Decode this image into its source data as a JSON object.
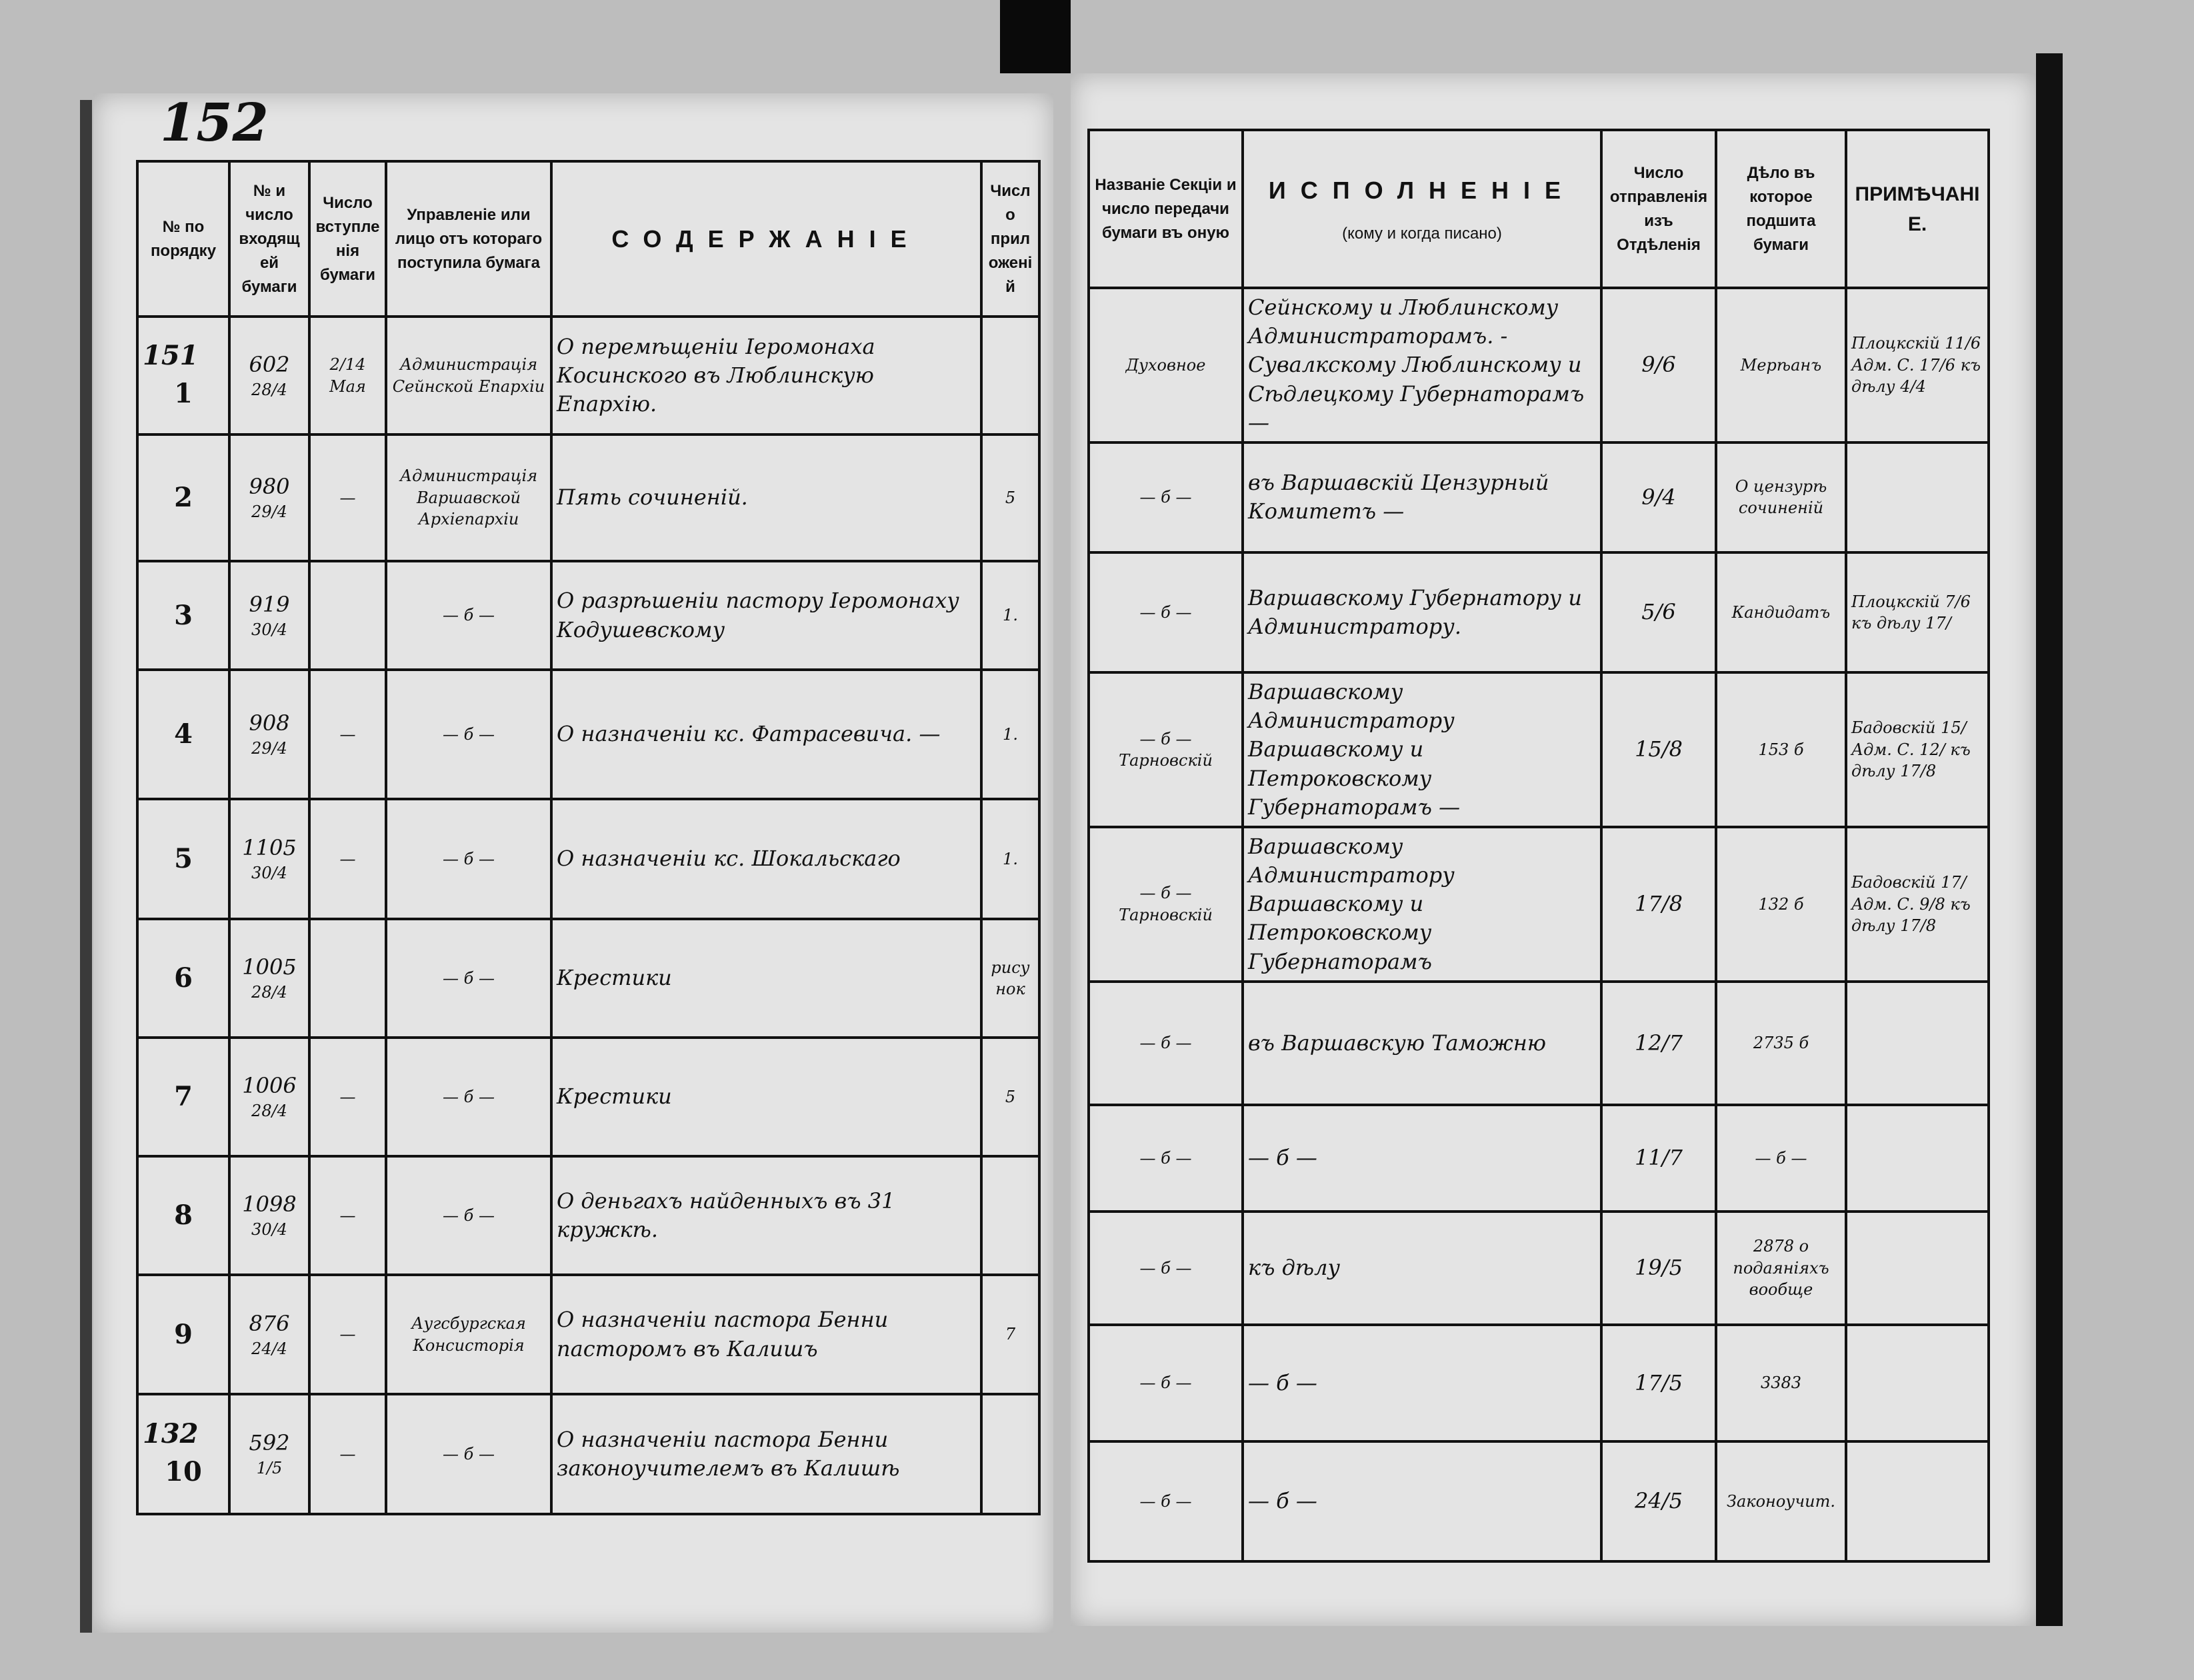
{
  "page_number": "152",
  "left_table": {
    "headers": [
      "№ по порядку",
      "№ и число входящей бумаги",
      "Число вступленія бумаги",
      "Управленіе или лицо отъ котораго поступила бумага",
      "СОДЕРЖАНІЕ",
      "Число приложеній"
    ],
    "rows": [
      {
        "margin": "151",
        "num": "1",
        "in_no": "602",
        "in_date": "28/4",
        "received": "2/14 Мая",
        "from": "Администрація Сейнской Епархіи",
        "content": "О перемѣщеніи Іеромонаха Косинского въ Люблинскую Епархію.",
        "attach": ""
      },
      {
        "margin": "",
        "num": "2",
        "in_no": "980",
        "in_date": "29/4",
        "received": "—",
        "from": "Администрація Варшавской Архіепархіи",
        "content": "Пять сочиненій.",
        "attach": "5"
      },
      {
        "margin": "",
        "num": "3",
        "in_no": "919",
        "in_date": "30/4",
        "received": "",
        "from": "— б —",
        "content": "О разрѣшеніи пастору Іеромонаху Кодушевскому",
        "attach": "1."
      },
      {
        "margin": "",
        "num": "4",
        "in_no": "908",
        "in_date": "29/4",
        "received": "—",
        "from": "— б —",
        "content": "О назначеніи кс. Фатрасевича. —",
        "attach": "1."
      },
      {
        "margin": "",
        "num": "5",
        "in_no": "1105",
        "in_date": "30/4",
        "received": "—",
        "from": "— б —",
        "content": "О назначеніи кс. Шокальскаго",
        "attach": "1."
      },
      {
        "margin": "",
        "num": "6",
        "in_no": "1005",
        "in_date": "28/4",
        "received": "",
        "from": "— б —",
        "content": "Крестики",
        "attach": "рисунок"
      },
      {
        "margin": "",
        "num": "7",
        "in_no": "1006",
        "in_date": "28/4",
        "received": "—",
        "from": "— б —",
        "content": "Крестики",
        "attach": "5"
      },
      {
        "margin": "",
        "num": "8",
        "in_no": "1098",
        "in_date": "30/4",
        "received": "—",
        "from": "— б —",
        "content": "О деньгахъ найденныхъ въ 31 кружкѣ.",
        "attach": ""
      },
      {
        "margin": "",
        "num": "9",
        "in_no": "876",
        "in_date": "24/4",
        "received": "—",
        "from": "Аугсбургская Консисторія",
        "content": "О назначеніи пастора Бенни пасторомъ въ Калишъ",
        "attach": "7"
      },
      {
        "margin": "132",
        "num": "10",
        "in_no": "592",
        "in_date": "1/5",
        "received": "—",
        "from": "— б —",
        "content": "О назначеніи пастора Бенни законоучителемъ въ Калишѣ",
        "attach": ""
      }
    ]
  },
  "right_table": {
    "headers": [
      "Названіе Секціи и число передачи бумаги въ оную",
      "ИСПОЛНЕНІЕ",
      "(кому и когда писано)",
      "Число отправленія изъ Отдѣленія",
      "Дѣло въ которое подшита бумаги",
      "ПРИМѢЧАНІЕ."
    ],
    "rows": [
      {
        "section": "Духовное",
        "execution": "Сейнскому и Люблинскому Администраторамъ. - Сувалкскому Люблинскому и Сѣдлецкому Губернаторамъ —",
        "sent": "9/6",
        "file": "Мерѣанъ",
        "note": "Плоцкскій 11/6 Адм. С. 17/6 къ дѣлу 4/4"
      },
      {
        "section": "— б —",
        "execution": "въ Варшавскій Цензурный Комитетъ —",
        "sent": "9/4",
        "file": "О цензурѣ сочиненій",
        "note": ""
      },
      {
        "section": "— б —",
        "execution": "Варшавскому Губернатору и Администратору.",
        "sent": "5/6",
        "file": "Кандидатъ",
        "note": "Плоцкскій 7/6 къ дѣлу 17/"
      },
      {
        "section": "— б — Тарновскій",
        "execution": "Варшавскому Администратору Варшавскому и Петроковскому Губернаторамъ —",
        "sent": "15/8",
        "file": "153 б",
        "note": "Бадовскій 15/ Адм. С. 12/ къ дѣлу 17/8"
      },
      {
        "section": "— б — Тарновскій",
        "execution": "Варшавскому Администратору Варшавскому и Петроковскому Губернаторамъ",
        "sent": "17/8",
        "file": "132 б",
        "note": "Бадовскій 17/ Адм. С. 9/8 къ дѣлу 17/8"
      },
      {
        "section": "— б —",
        "execution": "въ Варшавскую Таможню",
        "sent": "12/7",
        "file": "2735 б",
        "note": ""
      },
      {
        "section": "— б —",
        "execution": "— б —",
        "sent": "11/7",
        "file": "— б —",
        "note": ""
      },
      {
        "section": "— б —",
        "execution": "къ дѣлу",
        "sent": "19/5",
        "file": "2878 о подаяніяхъ вообще",
        "note": ""
      },
      {
        "section": "— б —",
        "execution": "— б —",
        "sent": "17/5",
        "file": "3383",
        "note": ""
      },
      {
        "section": "— б —",
        "execution": "— б —",
        "sent": "24/5",
        "file": "Законоучит.",
        "note": ""
      }
    ]
  }
}
